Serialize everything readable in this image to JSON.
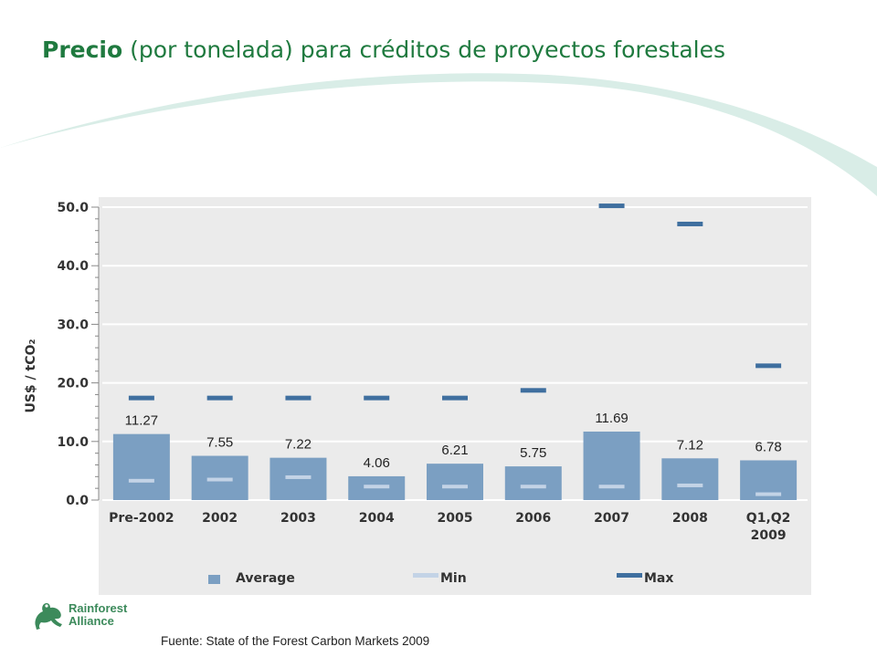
{
  "slide": {
    "title_bold": "Precio",
    "title_rest": "(por tonelada) para créditos de proyectos forestales",
    "source": "Fuente: State of the Forest Carbon Markets 2009"
  },
  "brand": {
    "line1": "Rainforest",
    "line2": "Alliance"
  },
  "colors": {
    "title": "#1f7a3f",
    "average": "#7b9fc2",
    "min": "#c3d3e6",
    "max": "#3f6f9f",
    "plot_bg": "#ebebeb",
    "swoosh": "#d9ede7"
  },
  "chart_data": {
    "type": "bar",
    "ylabel": "US$ / tCO₂",
    "ylim": [
      0,
      50
    ],
    "yticks": [
      "0.0",
      "10.0",
      "20.0",
      "30.0",
      "40.0",
      "50.0"
    ],
    "grid": true,
    "categories": [
      "Pre-2002",
      "2002",
      "2003",
      "2004",
      "2005",
      "2006",
      "2007",
      "2008",
      "Q1,Q2\n2009"
    ],
    "series": [
      {
        "name": "Average",
        "values": [
          11.27,
          7.55,
          7.22,
          4.06,
          6.21,
          5.75,
          11.69,
          7.12,
          6.78
        ]
      },
      {
        "name": "Min",
        "values": [
          3.3,
          3.5,
          3.9,
          2.3,
          2.3,
          2.3,
          2.3,
          2.5,
          1.0
        ]
      },
      {
        "name": "Max",
        "values": [
          17.5,
          17.5,
          17.5,
          17.5,
          17.5,
          18.8,
          50.3,
          47.2,
          23.0
        ]
      }
    ],
    "data_labels": [
      "11.27",
      "7.55",
      "7.22",
      "4.06",
      "6.21",
      "5.75",
      "11.69",
      "7.12",
      "6.78"
    ],
    "legend": [
      "Average",
      "Min",
      "Max"
    ],
    "legend_position": "bottom"
  }
}
